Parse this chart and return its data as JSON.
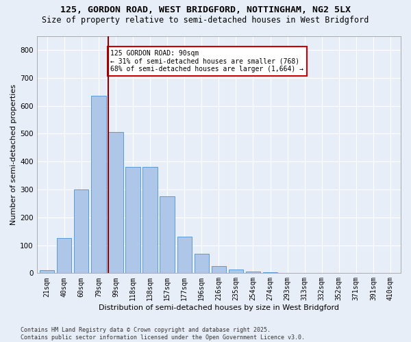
{
  "title1": "125, GORDON ROAD, WEST BRIDGFORD, NOTTINGHAM, NG2 5LX",
  "title2": "Size of property relative to semi-detached houses in West Bridgford",
  "xlabel": "Distribution of semi-detached houses by size in West Bridgford",
  "ylabel": "Number of semi-detached properties",
  "footer1": "Contains HM Land Registry data © Crown copyright and database right 2025.",
  "footer2": "Contains public sector information licensed under the Open Government Licence v3.0.",
  "bar_labels": [
    "21sqm",
    "40sqm",
    "60sqm",
    "79sqm",
    "99sqm",
    "118sqm",
    "138sqm",
    "157sqm",
    "177sqm",
    "196sqm",
    "216sqm",
    "235sqm",
    "254sqm",
    "274sqm",
    "293sqm",
    "313sqm",
    "332sqm",
    "352sqm",
    "371sqm",
    "391sqm",
    "410sqm"
  ],
  "bar_values": [
    10,
    125,
    300,
    635,
    505,
    380,
    380,
    275,
    130,
    70,
    25,
    12,
    5,
    3,
    0,
    0,
    0,
    0,
    0,
    0,
    0
  ],
  "bar_color": "#aec6e8",
  "bar_edge_color": "#5b9bd5",
  "vline_color": "#8b0000",
  "annotation_title": "125 GORDON ROAD: 90sqm",
  "annotation_line1": "← 31% of semi-detached houses are smaller (768)",
  "annotation_line2": "68% of semi-detached houses are larger (1,664) →",
  "annotation_box_color": "#ffffff",
  "annotation_box_edge": "#cc0000",
  "ylim": [
    0,
    850
  ],
  "yticks": [
    0,
    100,
    200,
    300,
    400,
    500,
    600,
    700,
    800
  ],
  "bg_color": "#e8eef8",
  "grid_color": "#ffffff",
  "title_fontsize": 9.5,
  "subtitle_fontsize": 8.5
}
